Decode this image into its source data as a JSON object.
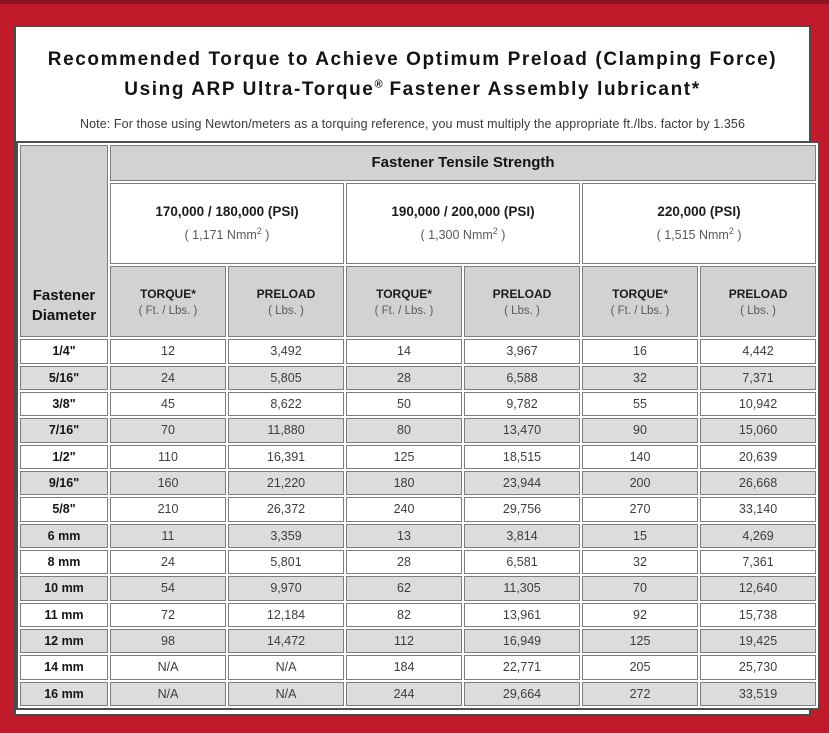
{
  "colors": {
    "frame_red": "#c11a2b",
    "frame_top_strip": "#8c1322",
    "panel_border": "#4a4a4a",
    "header_gray": "#d2d2d2",
    "row_alt_gray": "#dcdcdc"
  },
  "title": {
    "line1": "Recommended Torque to Achieve Optimum Preload (Clamping Force)",
    "line2_pre": "Using ARP Ultra-Torque",
    "line2_reg": "®",
    "line2_post": " Fastener Assembly lubricant*",
    "note": "Note: For those using Newton/meters as a torquing reference, you must multiply the appropriate ft./lbs. factor by 1.356"
  },
  "table": {
    "corner_label_line1": "Fastener",
    "corner_label_line2": "Diameter",
    "tensile_header": "Fastener Tensile Strength",
    "strength_groups": [
      {
        "psi": "170,000 / 180,000 (PSI)",
        "nmm_pre": "( 1,171 Nmm",
        "nmm_sup": "2",
        "nmm_post": " )"
      },
      {
        "psi": "190,000 / 200,000 (PSI)",
        "nmm_pre": "( 1,300 Nmm",
        "nmm_sup": "2",
        "nmm_post": " )"
      },
      {
        "psi": "220,000 (PSI)",
        "nmm_pre": "( 1,515 Nmm",
        "nmm_sup": "2",
        "nmm_post": " )"
      }
    ],
    "sub_headers": {
      "torque_label": "TORQUE*",
      "torque_unit": "( Ft. / Lbs. )",
      "preload_label": "PRELOAD",
      "preload_unit": "( Lbs. )"
    },
    "rows": [
      {
        "diameter": "1/4\"",
        "values": [
          "12",
          "3,492",
          "14",
          "3,967",
          "16",
          "4,442"
        ]
      },
      {
        "diameter": "5/16\"",
        "values": [
          "24",
          "5,805",
          "28",
          "6,588",
          "32",
          "7,371"
        ]
      },
      {
        "diameter": "3/8\"",
        "values": [
          "45",
          "8,622",
          "50",
          "9,782",
          "55",
          "10,942"
        ]
      },
      {
        "diameter": "7/16\"",
        "values": [
          "70",
          "11,880",
          "80",
          "13,470",
          "90",
          "15,060"
        ]
      },
      {
        "diameter": "1/2\"",
        "values": [
          "110",
          "16,391",
          "125",
          "18,515",
          "140",
          "20,639"
        ]
      },
      {
        "diameter": "9/16\"",
        "values": [
          "160",
          "21,220",
          "180",
          "23,944",
          "200",
          "26,668"
        ]
      },
      {
        "diameter": "5/8\"",
        "values": [
          "210",
          "26,372",
          "240",
          "29,756",
          "270",
          "33,140"
        ]
      },
      {
        "diameter": "6 mm",
        "values": [
          "11",
          "3,359",
          "13",
          "3,814",
          "15",
          "4,269"
        ]
      },
      {
        "diameter": "8 mm",
        "values": [
          "24",
          "5,801",
          "28",
          "6,581",
          "32",
          "7,361"
        ]
      },
      {
        "diameter": "10 mm",
        "values": [
          "54",
          "9,970",
          "62",
          "11,305",
          "70",
          "12,640"
        ]
      },
      {
        "diameter": "11 mm",
        "values": [
          "72",
          "12,184",
          "82",
          "13,961",
          "92",
          "15,738"
        ]
      },
      {
        "diameter": "12 mm",
        "values": [
          "98",
          "14,472",
          "112",
          "16,949",
          "125",
          "19,425"
        ]
      },
      {
        "diameter": "14 mm",
        "values": [
          "N/A",
          "N/A",
          "184",
          "22,771",
          "205",
          "25,730"
        ]
      },
      {
        "diameter": "16 mm",
        "values": [
          "N/A",
          "N/A",
          "244",
          "29,664",
          "272",
          "33,519"
        ]
      }
    ]
  }
}
